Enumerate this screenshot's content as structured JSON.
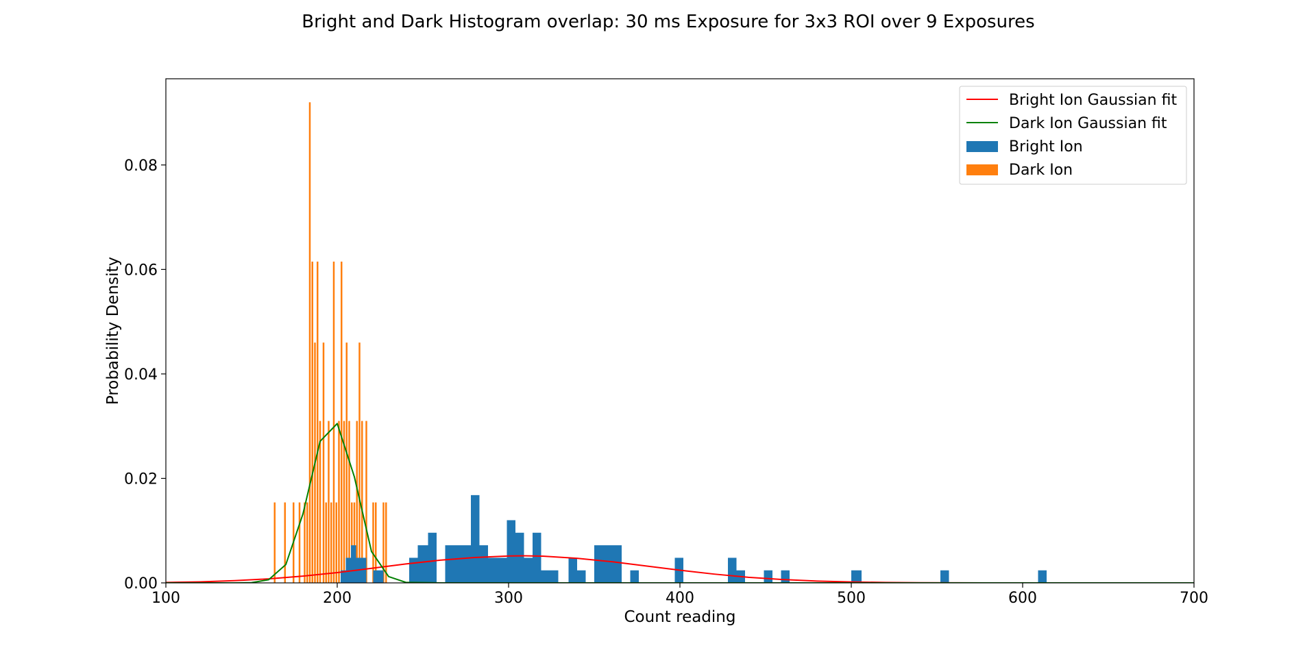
{
  "chart_data": {
    "type": "bar",
    "title": "Bright and Dark Histogram overlap: 30 ms Exposure for 3x3 ROI over 9 Exposures",
    "xlabel": "Count reading",
    "ylabel": "Probability Density",
    "xlim": [
      100,
      700
    ],
    "ylim": [
      0,
      0.0965
    ],
    "xticks": [
      100,
      200,
      300,
      400,
      500,
      600,
      700
    ],
    "xtick_labels": [
      "100",
      "200",
      "300",
      "400",
      "500",
      "600",
      "700"
    ],
    "yticks": [
      0,
      0.02,
      0.04,
      0.06,
      0.08
    ],
    "ytick_labels": [
      "0.00",
      "0.02",
      "0.04",
      "0.06",
      "0.08"
    ],
    "grid": false,
    "legend_position": "top-right",
    "legend": [
      "Bright Ion Gaussian fit",
      "Dark Ion Gaussian fit",
      "Bright Ion",
      "Dark Ion"
    ],
    "series": [
      {
        "name": "Dark Ion",
        "kind": "histogram",
        "color": "#ff7f0e",
        "bins": [
          {
            "x0": 163.0,
            "x1": 164.0,
            "y": 0.0154
          },
          {
            "x0": 169.0,
            "x1": 170.0,
            "y": 0.0154
          },
          {
            "x0": 174.0,
            "x1": 175.0,
            "y": 0.0154
          },
          {
            "x0": 177.5,
            "x1": 178.5,
            "y": 0.0154
          },
          {
            "x0": 180.5,
            "x1": 181.5,
            "y": 0.0154
          },
          {
            "x0": 182.0,
            "x1": 183.0,
            "y": 0.0154
          },
          {
            "x0": 183.5,
            "x1": 184.5,
            "y": 0.092
          },
          {
            "x0": 185.0,
            "x1": 186.0,
            "y": 0.0615
          },
          {
            "x0": 186.5,
            "x1": 187.5,
            "y": 0.046
          },
          {
            "x0": 188.0,
            "x1": 189.0,
            "y": 0.0615
          },
          {
            "x0": 189.5,
            "x1": 190.5,
            "y": 0.031
          },
          {
            "x0": 191.5,
            "x1": 192.5,
            "y": 0.046
          },
          {
            "x0": 193.0,
            "x1": 194.0,
            "y": 0.0154
          },
          {
            "x0": 194.5,
            "x1": 195.5,
            "y": 0.031
          },
          {
            "x0": 196.0,
            "x1": 197.0,
            "y": 0.0154
          },
          {
            "x0": 197.5,
            "x1": 198.5,
            "y": 0.0615
          },
          {
            "x0": 199.0,
            "x1": 200.0,
            "y": 0.0154
          },
          {
            "x0": 200.5,
            "x1": 201.5,
            "y": 0.031
          },
          {
            "x0": 202.0,
            "x1": 203.0,
            "y": 0.0615
          },
          {
            "x0": 203.5,
            "x1": 204.5,
            "y": 0.031
          },
          {
            "x0": 205.0,
            "x1": 206.0,
            "y": 0.046
          },
          {
            "x0": 206.5,
            "x1": 207.5,
            "y": 0.031
          },
          {
            "x0": 208.0,
            "x1": 209.0,
            "y": 0.0154
          },
          {
            "x0": 209.5,
            "x1": 210.5,
            "y": 0.0154
          },
          {
            "x0": 211.0,
            "x1": 212.0,
            "y": 0.031
          },
          {
            "x0": 212.5,
            "x1": 213.5,
            "y": 0.046
          },
          {
            "x0": 214.0,
            "x1": 215.0,
            "y": 0.031
          },
          {
            "x0": 216.5,
            "x1": 217.5,
            "y": 0.031
          },
          {
            "x0": 220.5,
            "x1": 221.5,
            "y": 0.0154
          },
          {
            "x0": 222.0,
            "x1": 223.0,
            "y": 0.0154
          },
          {
            "x0": 226.5,
            "x1": 227.5,
            "y": 0.0154
          },
          {
            "x0": 228.0,
            "x1": 229.0,
            "y": 0.0154
          }
        ]
      },
      {
        "name": "Bright Ion",
        "kind": "histogram",
        "color": "#1f77b4",
        "bins": [
          {
            "x0": 202,
            "x1": 205,
            "y": 0.0024
          },
          {
            "x0": 205,
            "x1": 208,
            "y": 0.0048
          },
          {
            "x0": 208,
            "x1": 211,
            "y": 0.0072
          },
          {
            "x0": 211,
            "x1": 214,
            "y": 0.0048
          },
          {
            "x0": 214,
            "x1": 217,
            "y": 0.0048
          },
          {
            "x0": 221,
            "x1": 227,
            "y": 0.0024
          },
          {
            "x0": 242,
            "x1": 247,
            "y": 0.0048
          },
          {
            "x0": 247,
            "x1": 253,
            "y": 0.0072
          },
          {
            "x0": 253,
            "x1": 258,
            "y": 0.0096
          },
          {
            "x0": 263,
            "x1": 278,
            "y": 0.0072
          },
          {
            "x0": 278,
            "x1": 283,
            "y": 0.0168
          },
          {
            "x0": 283,
            "x1": 288,
            "y": 0.0072
          },
          {
            "x0": 288,
            "x1": 299,
            "y": 0.0048
          },
          {
            "x0": 299,
            "x1": 304,
            "y": 0.012
          },
          {
            "x0": 304,
            "x1": 309,
            "y": 0.0096
          },
          {
            "x0": 309,
            "x1": 314,
            "y": 0.0048
          },
          {
            "x0": 314,
            "x1": 319,
            "y": 0.0096
          },
          {
            "x0": 319,
            "x1": 329,
            "y": 0.0024
          },
          {
            "x0": 335,
            "x1": 340,
            "y": 0.0048
          },
          {
            "x0": 340,
            "x1": 345,
            "y": 0.0024
          },
          {
            "x0": 350,
            "x1": 366,
            "y": 0.0072
          },
          {
            "x0": 371,
            "x1": 376,
            "y": 0.0024
          },
          {
            "x0": 397,
            "x1": 402,
            "y": 0.0048
          },
          {
            "x0": 428,
            "x1": 433,
            "y": 0.0048
          },
          {
            "x0": 433,
            "x1": 438,
            "y": 0.0024
          },
          {
            "x0": 449,
            "x1": 454,
            "y": 0.0024
          },
          {
            "x0": 459,
            "x1": 464,
            "y": 0.0024
          },
          {
            "x0": 500,
            "x1": 506,
            "y": 0.0024
          },
          {
            "x0": 552,
            "x1": 557,
            "y": 0.0024
          },
          {
            "x0": 609,
            "x1": 614,
            "y": 0.0024
          }
        ]
      },
      {
        "name": "Bright Ion Gaussian fit",
        "kind": "line",
        "color": "#ff0000",
        "x": [
          100,
          120,
          140,
          160,
          180,
          200,
          220,
          240,
          260,
          280,
          300,
          310,
          320,
          340,
          360,
          380,
          400,
          420,
          440,
          460,
          480,
          500,
          520,
          540,
          560,
          580,
          600,
          620,
          650,
          700
        ],
        "y": [
          8e-05,
          0.0002,
          0.00042,
          0.00077,
          0.0013,
          0.00197,
          0.00278,
          0.00362,
          0.00434,
          0.00485,
          0.00514,
          0.00518,
          0.00512,
          0.0047,
          0.00406,
          0.00325,
          0.00243,
          0.00168,
          0.00107,
          0.00064,
          0.00035,
          0.00018,
          8e-05,
          3e-05,
          1e-05,
          0,
          0,
          0,
          0,
          0
        ]
      },
      {
        "name": "Dark Ion Gaussian fit",
        "kind": "line",
        "color": "#008000",
        "x": [
          100,
          140,
          150,
          160,
          170,
          180,
          190,
          200,
          210,
          220,
          230,
          240,
          260,
          700
        ],
        "y": [
          0,
          0,
          5e-05,
          0.0006,
          0.0035,
          0.0132,
          0.0271,
          0.0305,
          0.0203,
          0.006,
          0.0012,
          0.0001,
          0,
          0
        ]
      }
    ]
  }
}
